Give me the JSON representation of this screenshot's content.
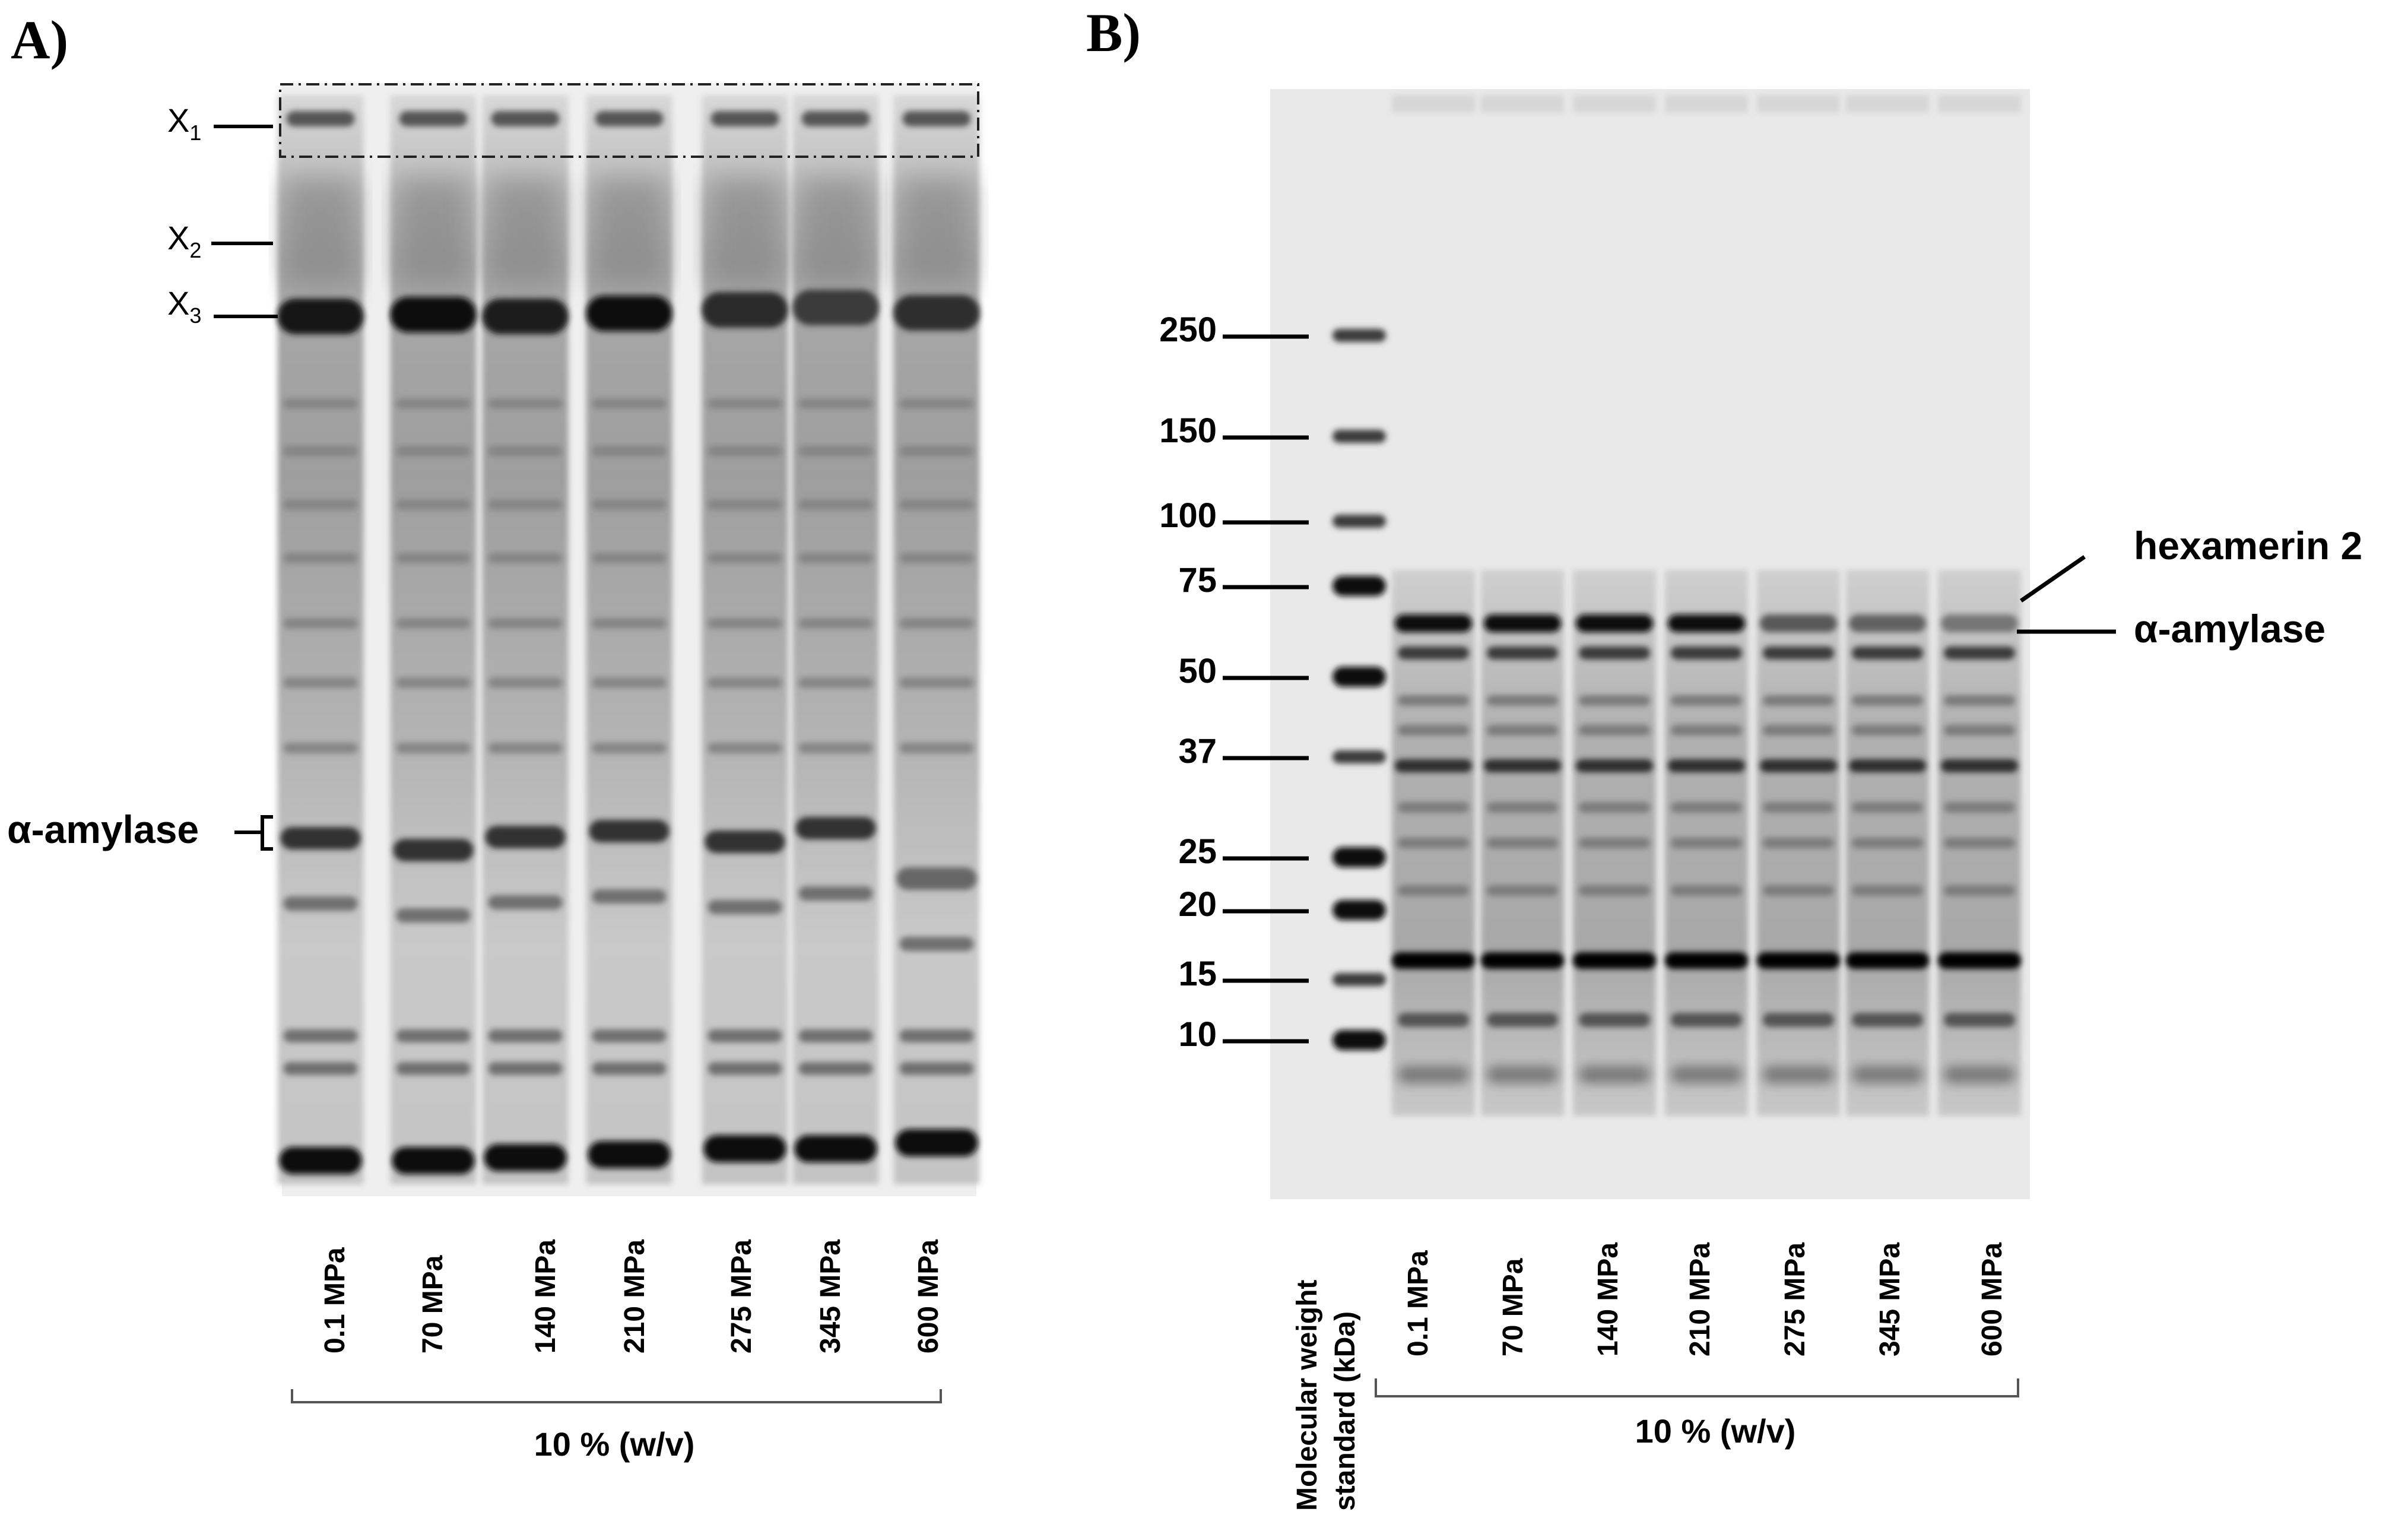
{
  "panels": [
    {
      "id": "A",
      "title": "A)",
      "lanes": [
        "0.1 MPa",
        "70 MPa",
        "140 MPa",
        "210 MPa",
        "275 MPa",
        "345 MPa",
        "600 MPa"
      ],
      "markers": [
        {
          "base": "X",
          "sub": "1"
        },
        {
          "base": "X",
          "sub": "2"
        },
        {
          "base": "X",
          "sub": "3"
        }
      ],
      "annotation": "α-amylase",
      "condition": "10 % (w/v)"
    },
    {
      "id": "B",
      "title": "B)",
      "ladder_label_line1": "Molecular weight",
      "ladder_label_line2": "standard (kDa)",
      "mw_markers": [
        "250",
        "150",
        "100",
        "75",
        "50",
        "37",
        "25",
        "20",
        "15",
        "10"
      ],
      "lanes": [
        "0.1 MPa",
        "70 MPa",
        "140 MPa",
        "210 MPa",
        "275 MPa",
        "345 MPa",
        "600 MPa"
      ],
      "annotations": [
        "hexamerin 2",
        "α-amylase"
      ],
      "condition": "10 % (w/v)"
    }
  ]
}
